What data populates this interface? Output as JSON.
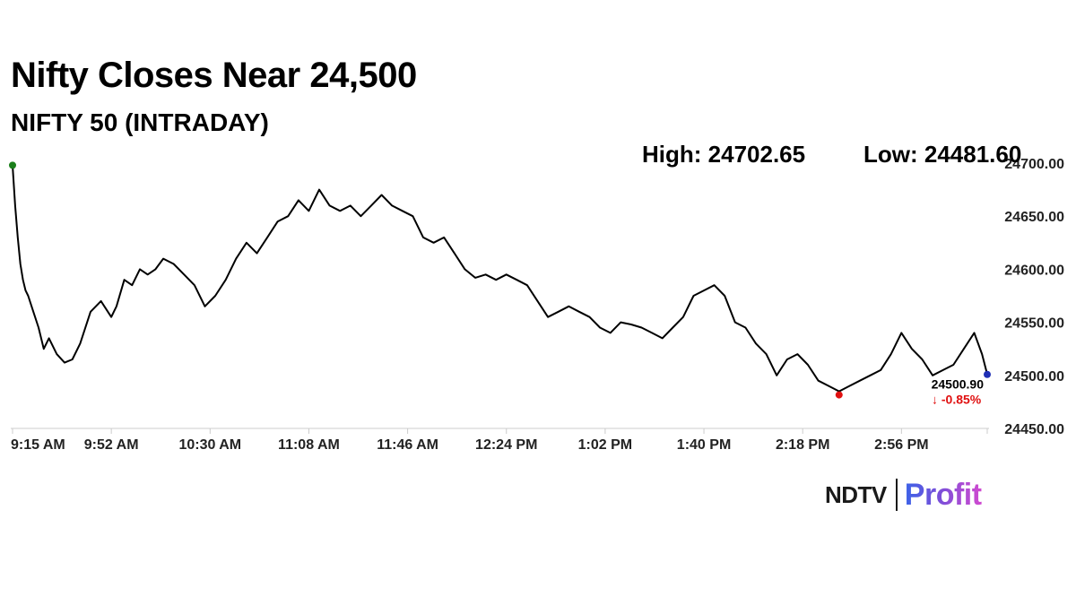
{
  "header": {
    "title": "Nifty Closes Near 24,500",
    "subtitle": "NIFTY 50 (INTRADAY)",
    "high_label": "High: 24702.65",
    "low_label": "Low: 24481.60"
  },
  "brand": {
    "ndtv": "NDTV",
    "profit": "Profit"
  },
  "colors": {
    "line": "#000000",
    "open_marker": "#1a7f1a",
    "low_marker": "#e01010",
    "close_marker": "#1f2fb5",
    "change_text": "#e01010",
    "axis": "#cccccc"
  },
  "chart_data": {
    "type": "line",
    "title": "Nifty Closes Near 24,500",
    "subtitle": "NIFTY 50 (INTRADAY)",
    "xlabel": "",
    "ylabel": "",
    "x_ticks": [
      "9:15 AM",
      "9:52 AM",
      "10:30 AM",
      "11:08 AM",
      "11:46 AM",
      "12:24 PM",
      "1:02 PM",
      "1:40 PM",
      "2:18 PM",
      "2:56 PM"
    ],
    "y_ticks": [
      "24450.00",
      "24500.00",
      "24550.00",
      "24600.00",
      "24650.00",
      "24700.00"
    ],
    "ylim": [
      24450,
      24700
    ],
    "xlim_minutes": [
      0,
      375
    ],
    "y_axis_position": "right",
    "grid": false,
    "high": 24702.65,
    "low": 24481.6,
    "close": 24500.9,
    "change_pct": "-0.85%",
    "close_label": "24500.90",
    "change_label": "↓ -0.85%",
    "series": [
      {
        "x": [
          0,
          1,
          2,
          3,
          4,
          5,
          6,
          8,
          10,
          12,
          14,
          17,
          20,
          23,
          26,
          30,
          34,
          38,
          40,
          43,
          46,
          49,
          52,
          55,
          58,
          62,
          66,
          70,
          74,
          78,
          82,
          86,
          90,
          94,
          98,
          102,
          106,
          110,
          114,
          118,
          122,
          126,
          130,
          134,
          138,
          142,
          146,
          150,
          154,
          158,
          162,
          166,
          170,
          174,
          178,
          182,
          186,
          190,
          194,
          198,
          202,
          206,
          210,
          214,
          218,
          222,
          226,
          230,
          234,
          238,
          242,
          246,
          250,
          254,
          258,
          262,
          266,
          270,
          274,
          278,
          282,
          286,
          290,
          294,
          298,
          302,
          306,
          310,
          314,
          318,
          322,
          326,
          330,
          334,
          338,
          342,
          346,
          350,
          354,
          358,
          362,
          366,
          370,
          373,
          375
        ],
        "y": [
          24698,
          24660,
          24630,
          24605,
          24590,
          24580,
          24575,
          24560,
          24545,
          24525,
          24535,
          24520,
          24512,
          24515,
          24530,
          24560,
          24570,
          24555,
          24565,
          24590,
          24585,
          24600,
          24595,
          24600,
          24610,
          24605,
          24595,
          24585,
          24565,
          24575,
          24590,
          24610,
          24625,
          24615,
          24630,
          24645,
          24650,
          24665,
          24655,
          24675,
          24660,
          24655,
          24660,
          24650,
          24660,
          24670,
          24660,
          24655,
          24650,
          24630,
          24625,
          24630,
          24615,
          24600,
          24592,
          24595,
          24590,
          24595,
          24590,
          24585,
          24570,
          24555,
          24560,
          24565,
          24560,
          24555,
          24545,
          24540,
          24550,
          24548,
          24545,
          24540,
          24535,
          24545,
          24555,
          24575,
          24580,
          24585,
          24575,
          24550,
          24545,
          24530,
          24520,
          24500,
          24515,
          24520,
          24510,
          24495,
          24490,
          24485,
          24490,
          24495,
          24500,
          24505,
          24520,
          24540,
          24525,
          24515,
          24500,
          24505,
          24510,
          24525,
          24540,
          24520,
          24501
        ]
      }
    ]
  }
}
